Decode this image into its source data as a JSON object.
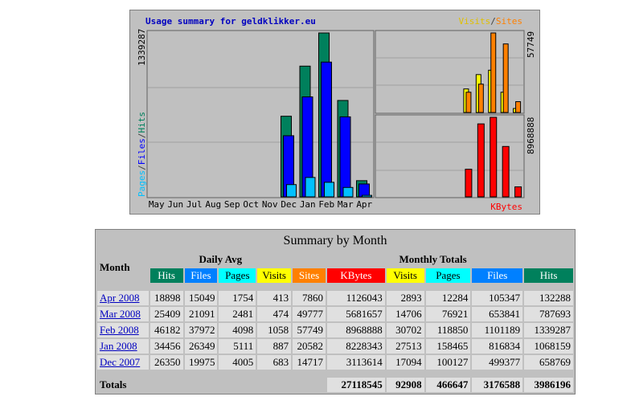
{
  "graph": {
    "title": "Usage summary for geldklikker.eu",
    "legend_left": [
      "Pages",
      "Files",
      "Hits"
    ],
    "legend_right": [
      "Visits",
      "Sites"
    ],
    "separator": "/",
    "kbytes_label": "KBytes",
    "hits_max": 1339287,
    "sites_max": 57749,
    "kbytes_max": 8968888,
    "months": [
      "May",
      "Jun",
      "Jul",
      "Aug",
      "Sep",
      "Oct",
      "Nov",
      "Dec",
      "Jan",
      "Feb",
      "Mar",
      "Apr"
    ]
  },
  "table": {
    "title": "Summary by Month",
    "month_header": "Month",
    "daily_header": "Daily Avg",
    "monthly_header": "Monthly Totals",
    "daily_columns": [
      "Hits",
      "Files",
      "Pages",
      "Visits"
    ],
    "monthly_columns": [
      "Sites",
      "KBytes",
      "Visits",
      "Pages",
      "Files",
      "Hits"
    ],
    "rows": [
      {
        "month": "Apr 2008",
        "daily": [
          18898,
          15049,
          1754,
          413
        ],
        "monthly": [
          7860,
          1126043,
          2893,
          12284,
          105347,
          132288
        ]
      },
      {
        "month": "Mar 2008",
        "daily": [
          25409,
          21091,
          2481,
          474
        ],
        "monthly": [
          49777,
          5681657,
          14706,
          76921,
          653841,
          787693
        ]
      },
      {
        "month": "Feb 2008",
        "daily": [
          46182,
          37972,
          4098,
          1058
        ],
        "monthly": [
          57749,
          8968888,
          30702,
          118850,
          1101189,
          1339287
        ]
      },
      {
        "month": "Jan 2008",
        "daily": [
          34456,
          26349,
          5111,
          887
        ],
        "monthly": [
          20582,
          8228343,
          27513,
          158465,
          816834,
          1068159
        ]
      },
      {
        "month": "Dec 2007",
        "daily": [
          26350,
          19975,
          4005,
          683
        ],
        "monthly": [
          14717,
          3113614,
          17094,
          100127,
          499377,
          658769
        ]
      }
    ],
    "totals": {
      "label": "Totals",
      "values": [
        27118545,
        92908,
        466647,
        3176588,
        3986196
      ]
    }
  }
}
